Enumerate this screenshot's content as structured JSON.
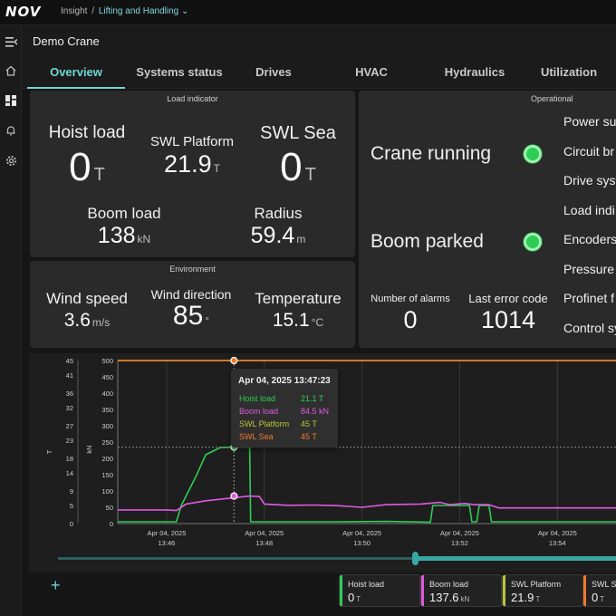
{
  "brand": {
    "logo_text": "NOV"
  },
  "breadcrumb": {
    "root": "Insight",
    "separator": "/",
    "section": "Lifting and Handling",
    "chevron": "⌄"
  },
  "header": {
    "title": "Demo Crane"
  },
  "nav_icons": [
    "menu-collapse-icon",
    "home-icon",
    "dashboard-icon",
    "bell-icon",
    "gear-icon"
  ],
  "tabs": [
    {
      "label": "Overview",
      "active": true
    },
    {
      "label": "Systems status"
    },
    {
      "label": "Drives"
    },
    {
      "label": "HVAC"
    },
    {
      "label": "Hydraulics"
    },
    {
      "label": "Utilization"
    }
  ],
  "load_indicator": {
    "title": "Load indicator",
    "hoist_load": {
      "label": "Hoist load",
      "value": "0",
      "unit": "T"
    },
    "swl_platform": {
      "label": "SWL Platform",
      "value": "21.9",
      "unit": "T"
    },
    "swl_sea": {
      "label": "SWL Sea",
      "value": "0",
      "unit": "T"
    },
    "boom_load": {
      "label": "Boom load",
      "value": "138",
      "unit": "kN"
    },
    "radius": {
      "label": "Radius",
      "value": "59.4",
      "unit": "m"
    }
  },
  "environment": {
    "title": "Environment",
    "wind_speed": {
      "label": "Wind speed",
      "value": "3.6",
      "unit": "m/s"
    },
    "wind_direction": {
      "label": "Wind direction",
      "value": "85",
      "unit": "°"
    },
    "temperature": {
      "label": "Temperature",
      "value": "15.1",
      "unit": "°C"
    }
  },
  "operational": {
    "title": "Operational",
    "crane_running": "Crane running",
    "boom_parked": "Boom parked",
    "status_color": "#2ecc54",
    "alarms": {
      "label": "Number of alarms",
      "value": "0"
    },
    "last_error": {
      "label": "Last error code",
      "value": "1014"
    },
    "items": [
      "Power sup",
      "Circuit br",
      "Drive syst",
      "Load indi",
      "Encoders",
      "Pressure a",
      "Profinet f",
      "Control sy"
    ]
  },
  "tooltip": {
    "title": "Apr 04, 2025 13:47:23",
    "rows": [
      {
        "name": "Hoist load",
        "value": "21.1 T",
        "color": "#2ecc54"
      },
      {
        "name": "Boom load",
        "value": "84.5 kN",
        "color": "#e05ae0"
      },
      {
        "name": "SWL Platform",
        "value": "45 T",
        "color": "#b8c832"
      },
      {
        "name": "SWL Sea",
        "value": "45 T",
        "color": "#f07a2a"
      }
    ]
  },
  "chart_data": {
    "type": "line",
    "y_left": {
      "label": "T",
      "ticks": [
        0,
        5,
        9,
        14,
        18,
        23,
        27,
        32,
        36,
        41,
        45
      ],
      "range": [
        0,
        45
      ]
    },
    "y_right": {
      "label": "kN",
      "ticks": [
        0,
        50,
        100,
        150,
        200,
        250,
        300,
        350,
        400,
        450,
        500
      ],
      "range": [
        0,
        500
      ]
    },
    "x_ticks": [
      {
        "date": "Apr 04, 2025",
        "time": "13:46"
      },
      {
        "date": "Apr 04, 2025",
        "time": "13:48"
      },
      {
        "date": "Apr 04, 2025",
        "time": "13:50"
      },
      {
        "date": "Apr 04, 2025",
        "time": "13:52"
      },
      {
        "date": "Apr 04, 2025",
        "time": "13:54"
      }
    ],
    "x_range_min": [
      45.0,
      55.2
    ],
    "grid": true,
    "series": [
      {
        "name": "Hoist load",
        "axis": "left",
        "color": "#2ecc54",
        "points": [
          [
            45.0,
            0.5
          ],
          [
            46.2,
            0.5
          ],
          [
            46.3,
            5
          ],
          [
            46.6,
            13
          ],
          [
            46.8,
            19
          ],
          [
            47.1,
            21
          ],
          [
            47.4,
            21.1
          ],
          [
            47.7,
            21.1
          ],
          [
            47.72,
            0.5
          ],
          [
            49.5,
            0.5
          ],
          [
            50.5,
            0.6
          ],
          [
            51.4,
            0.4
          ],
          [
            51.45,
            5
          ],
          [
            52.2,
            5
          ],
          [
            52.25,
            0.5
          ],
          [
            52.35,
            0.5
          ],
          [
            52.4,
            5
          ],
          [
            52.6,
            5
          ],
          [
            52.65,
            0.5
          ],
          [
            55.2,
            0.5
          ]
        ]
      },
      {
        "name": "Boom load",
        "axis": "right",
        "color": "#e05ae0",
        "points": [
          [
            45.0,
            42
          ],
          [
            46.0,
            42
          ],
          [
            46.2,
            40
          ],
          [
            46.4,
            60
          ],
          [
            46.8,
            70
          ],
          [
            47.3,
            78
          ],
          [
            47.7,
            84.5
          ],
          [
            47.9,
            83
          ],
          [
            48.0,
            60
          ],
          [
            48.5,
            56
          ],
          [
            49.0,
            57
          ],
          [
            49.5,
            55
          ],
          [
            50.0,
            50
          ],
          [
            50.5,
            58
          ],
          [
            51.2,
            60
          ],
          [
            51.6,
            65
          ],
          [
            51.8,
            58
          ],
          [
            52.1,
            62
          ],
          [
            52.3,
            58
          ],
          [
            52.6,
            58
          ],
          [
            52.8,
            48
          ],
          [
            55.2,
            48
          ]
        ]
      },
      {
        "name": "SWL Platform",
        "axis": "left",
        "color": "#b8c832",
        "points": [
          [
            45.0,
            45
          ],
          [
            55.2,
            45
          ]
        ]
      },
      {
        "name": "SWL Sea",
        "axis": "left",
        "color": "#f07a2a",
        "points": [
          [
            45.0,
            45
          ],
          [
            55.2,
            45
          ]
        ]
      }
    ],
    "highlight_time_min": 47.38
  },
  "footer": {
    "add_label": "+",
    "legend": [
      {
        "name": "Hoist load",
        "value": "0",
        "unit": "T",
        "color": "#2ecc54"
      },
      {
        "name": "Boom load",
        "value": "137.6",
        "unit": "kN",
        "color": "#e05ae0"
      },
      {
        "name": "SWL Platform",
        "value": "21.9",
        "unit": "T",
        "color": "#b8c832"
      },
      {
        "name": "SWL Sea",
        "value": "0",
        "unit": "T",
        "color": "#f07a2a"
      }
    ]
  }
}
